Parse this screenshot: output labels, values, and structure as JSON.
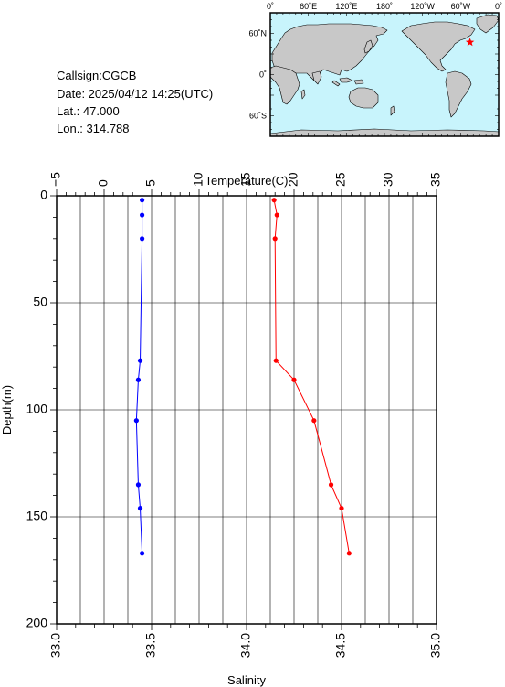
{
  "info": {
    "callsign": "Callsign:CGCB",
    "date": "Date:  2025/04/12 14:25(UTC)",
    "lat": "Lat.:  47.000",
    "lon": "Lon.:  314.788"
  },
  "map": {
    "lon_labels": [
      "0˚",
      "60˚E",
      "120˚E",
      "180˚",
      "120˚W",
      "60˚W",
      "0˚"
    ],
    "lat_labels": [
      "60˚N",
      "0˚",
      "60˚S"
    ],
    "ocean_color": "#c8f4fc",
    "land_color": "#c8c8c8",
    "marker": {
      "lon": 314.788,
      "lat": 47.0,
      "color": "#ff0000",
      "icon": "star-icon"
    }
  },
  "chart_data": {
    "type": "line",
    "xlabel_top": "Temperature(C)",
    "xlabel_bottom": "Salinity",
    "ylabel": "Depth(m)",
    "temperature_axis": {
      "lim": [
        -5,
        35
      ],
      "ticks": [
        "−5",
        "0",
        "5",
        "10",
        "15",
        "20",
        "25",
        "30",
        "35"
      ]
    },
    "salinity_axis": {
      "lim": [
        33.0,
        35.0
      ],
      "ticks": [
        "33.0",
        "33.5",
        "34.0",
        "34.5",
        "35.0"
      ]
    },
    "depth_axis": {
      "lim": [
        0,
        200
      ],
      "inverted": true,
      "ticks": [
        "0",
        "50",
        "100",
        "150",
        "200"
      ]
    },
    "grid": true,
    "series": [
      {
        "quantity": "temperature",
        "color": "#ff0000",
        "points": [
          {
            "depth": 2,
            "value": 17.9
          },
          {
            "depth": 9,
            "value": 18.2
          },
          {
            "depth": 20,
            "value": 18.0
          },
          {
            "depth": 77,
            "value": 18.1
          },
          {
            "depth": 86,
            "value": 20.0
          },
          {
            "depth": 105,
            "value": 22.1
          },
          {
            "depth": 135,
            "value": 23.9
          },
          {
            "depth": 146,
            "value": 25.0
          },
          {
            "depth": 167,
            "value": 25.8
          }
        ]
      },
      {
        "quantity": "salinity",
        "color": "#0000ff",
        "points": [
          {
            "depth": 2,
            "value": 33.45
          },
          {
            "depth": 9,
            "value": 33.45
          },
          {
            "depth": 20,
            "value": 33.45
          },
          {
            "depth": 77,
            "value": 33.44
          },
          {
            "depth": 86,
            "value": 33.43
          },
          {
            "depth": 105,
            "value": 33.42
          },
          {
            "depth": 135,
            "value": 33.43
          },
          {
            "depth": 146,
            "value": 33.44
          },
          {
            "depth": 167,
            "value": 33.45
          }
        ]
      }
    ]
  }
}
